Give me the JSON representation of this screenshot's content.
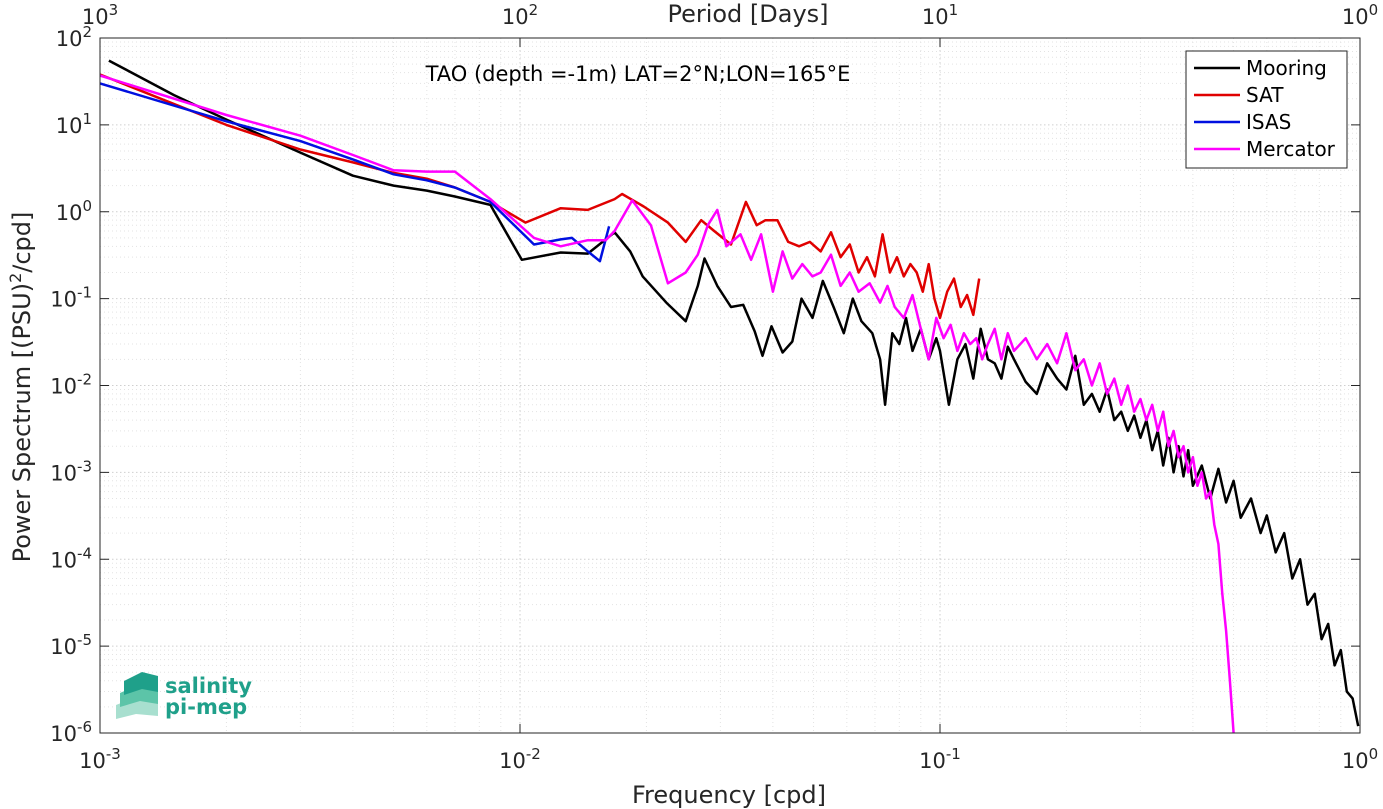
{
  "chart_data": {
    "type": "line",
    "annotation": "TAO (depth =-1m) LAT=2°N;LON=165°E",
    "xlabel": "Frequency [cpd]",
    "ylabel": "Power Spectrum [(PSU)²/cpd]",
    "ylabel_parts": {
      "pre": "Power Spectrum [(PSU)",
      "sup": "2",
      "post": "/cpd]"
    },
    "top_axis_label": "Period [Days]",
    "xscale": "log",
    "yscale": "log",
    "xlim": [
      0.001,
      1
    ],
    "ylim": [
      1e-06,
      100
    ],
    "grid": "major and minor, dotted",
    "legend_location": "top-right",
    "x_ticks": [
      {
        "value": 0.001,
        "base": "10",
        "exp": "-3"
      },
      {
        "value": 0.01,
        "base": "10",
        "exp": "-2"
      },
      {
        "value": 0.1,
        "base": "10",
        "exp": "-1"
      },
      {
        "value": 1,
        "base": "10",
        "exp": "0"
      }
    ],
    "y_ticks": [
      {
        "value": 100,
        "base": "10",
        "exp": "2"
      },
      {
        "value": 10,
        "base": "10",
        "exp": "1"
      },
      {
        "value": 1,
        "base": "10",
        "exp": "0"
      },
      {
        "value": 0.1,
        "base": "10",
        "exp": "-1"
      },
      {
        "value": 0.01,
        "base": "10",
        "exp": "-2"
      },
      {
        "value": 0.001,
        "base": "10",
        "exp": "-3"
      },
      {
        "value": 0.0001,
        "base": "10",
        "exp": "-4"
      },
      {
        "value": 1e-05,
        "base": "10",
        "exp": "-5"
      },
      {
        "value": 1e-06,
        "base": "10",
        "exp": "-6"
      }
    ],
    "top_ticks": [
      {
        "freq": 0.001,
        "base": "10",
        "exp": "3"
      },
      {
        "freq": 0.01,
        "base": "10",
        "exp": "2"
      },
      {
        "freq": 0.1,
        "base": "10",
        "exp": "1"
      },
      {
        "freq": 1,
        "base": "10",
        "exp": "0"
      }
    ],
    "series": [
      {
        "name": "Mooring",
        "color": "#000000",
        "points": [
          [
            0.00105,
            55
          ],
          [
            0.0015,
            22
          ],
          [
            0.002,
            11.5
          ],
          [
            0.003,
            4.8
          ],
          [
            0.004,
            2.6
          ],
          [
            0.005,
            2.0
          ],
          [
            0.006,
            1.75
          ],
          [
            0.007,
            1.5
          ],
          [
            0.0085,
            1.2
          ],
          [
            0.0101,
            0.28
          ],
          [
            0.0125,
            0.34
          ],
          [
            0.0145,
            0.33
          ],
          [
            0.0168,
            0.58
          ],
          [
            0.0183,
            0.35
          ],
          [
            0.0196,
            0.18
          ],
          [
            0.0223,
            0.09
          ],
          [
            0.0248,
            0.055
          ],
          [
            0.0265,
            0.14
          ],
          [
            0.0275,
            0.29
          ],
          [
            0.0295,
            0.14
          ],
          [
            0.0318,
            0.08
          ],
          [
            0.034,
            0.085
          ],
          [
            0.0362,
            0.042
          ],
          [
            0.0378,
            0.022
          ],
          [
            0.0397,
            0.048
          ],
          [
            0.0422,
            0.024
          ],
          [
            0.0445,
            0.032
          ],
          [
            0.0468,
            0.1
          ],
          [
            0.0497,
            0.06
          ],
          [
            0.0526,
            0.16
          ],
          [
            0.0558,
            0.08
          ],
          [
            0.059,
            0.04
          ],
          [
            0.062,
            0.1
          ],
          [
            0.065,
            0.055
          ],
          [
            0.069,
            0.04
          ],
          [
            0.072,
            0.02
          ],
          [
            0.074,
            0.006
          ],
          [
            0.077,
            0.04
          ],
          [
            0.08,
            0.03
          ],
          [
            0.083,
            0.06
          ],
          [
            0.086,
            0.025
          ],
          [
            0.09,
            0.045
          ],
          [
            0.094,
            0.02
          ],
          [
            0.098,
            0.035
          ],
          [
            0.1,
            0.025
          ],
          [
            0.105,
            0.006
          ],
          [
            0.11,
            0.02
          ],
          [
            0.115,
            0.03
          ],
          [
            0.12,
            0.012
          ],
          [
            0.125,
            0.045
          ],
          [
            0.13,
            0.02
          ],
          [
            0.135,
            0.018
          ],
          [
            0.14,
            0.012
          ],
          [
            0.145,
            0.028
          ],
          [
            0.15,
            0.02
          ],
          [
            0.16,
            0.011
          ],
          [
            0.17,
            0.008
          ],
          [
            0.18,
            0.018
          ],
          [
            0.19,
            0.012
          ],
          [
            0.2,
            0.009
          ],
          [
            0.21,
            0.022
          ],
          [
            0.22,
            0.006
          ],
          [
            0.23,
            0.008
          ],
          [
            0.24,
            0.005
          ],
          [
            0.25,
            0.009
          ],
          [
            0.26,
            0.004
          ],
          [
            0.27,
            0.005
          ],
          [
            0.28,
            0.003
          ],
          [
            0.29,
            0.0045
          ],
          [
            0.3,
            0.0025
          ],
          [
            0.31,
            0.004
          ],
          [
            0.32,
            0.0018
          ],
          [
            0.33,
            0.003
          ],
          [
            0.34,
            0.0012
          ],
          [
            0.35,
            0.0025
          ],
          [
            0.36,
            0.001
          ],
          [
            0.37,
            0.002
          ],
          [
            0.38,
            0.0009
          ],
          [
            0.39,
            0.0018
          ],
          [
            0.4,
            0.0007
          ],
          [
            0.42,
            0.0012
          ],
          [
            0.44,
            0.0005
          ],
          [
            0.46,
            0.0011
          ],
          [
            0.48,
            0.00045
          ],
          [
            0.5,
            0.0008
          ],
          [
            0.52,
            0.0003
          ],
          [
            0.55,
            0.0005
          ],
          [
            0.58,
            0.0002
          ],
          [
            0.6,
            0.00032
          ],
          [
            0.63,
            0.00012
          ],
          [
            0.66,
            0.0002
          ],
          [
            0.69,
            6e-05
          ],
          [
            0.72,
            0.0001
          ],
          [
            0.75,
            3e-05
          ],
          [
            0.78,
            4e-05
          ],
          [
            0.81,
            1.2e-05
          ],
          [
            0.84,
            1.8e-05
          ],
          [
            0.87,
            6e-06
          ],
          [
            0.9,
            9e-06
          ],
          [
            0.93,
            3e-06
          ],
          [
            0.96,
            2.5e-06
          ],
          [
            0.99,
            1.2e-06
          ]
        ]
      },
      {
        "name": "SAT",
        "color": "#e00000",
        "points": [
          [
            0.001,
            38
          ],
          [
            0.002,
            10
          ],
          [
            0.003,
            5.2
          ],
          [
            0.004,
            3.7
          ],
          [
            0.005,
            2.8
          ],
          [
            0.006,
            2.4
          ],
          [
            0.007,
            1.9
          ],
          [
            0.0085,
            1.3
          ],
          [
            0.0103,
            0.75
          ],
          [
            0.0125,
            1.1
          ],
          [
            0.0145,
            1.05
          ],
          [
            0.0168,
            1.4
          ],
          [
            0.0175,
            1.6
          ],
          [
            0.0197,
            1.15
          ],
          [
            0.0225,
            0.75
          ],
          [
            0.0248,
            0.45
          ],
          [
            0.027,
            0.8
          ],
          [
            0.029,
            0.6
          ],
          [
            0.0318,
            0.42
          ],
          [
            0.0345,
            1.3
          ],
          [
            0.0366,
            0.7
          ],
          [
            0.0384,
            0.8
          ],
          [
            0.041,
            0.8
          ],
          [
            0.0435,
            0.45
          ],
          [
            0.0462,
            0.4
          ],
          [
            0.049,
            0.45
          ],
          [
            0.052,
            0.35
          ],
          [
            0.055,
            0.58
          ],
          [
            0.058,
            0.3
          ],
          [
            0.061,
            0.42
          ],
          [
            0.064,
            0.2
          ],
          [
            0.067,
            0.3
          ],
          [
            0.07,
            0.18
          ],
          [
            0.073,
            0.55
          ],
          [
            0.076,
            0.2
          ],
          [
            0.079,
            0.3
          ],
          [
            0.082,
            0.18
          ],
          [
            0.085,
            0.25
          ],
          [
            0.088,
            0.2
          ],
          [
            0.091,
            0.12
          ],
          [
            0.094,
            0.25
          ],
          [
            0.097,
            0.1
          ],
          [
            0.1,
            0.06
          ],
          [
            0.104,
            0.12
          ],
          [
            0.108,
            0.17
          ],
          [
            0.112,
            0.08
          ],
          [
            0.116,
            0.11
          ],
          [
            0.12,
            0.065
          ],
          [
            0.124,
            0.17
          ]
        ]
      },
      {
        "name": "ISAS",
        "color": "#0010e0",
        "points": [
          [
            0.001,
            30
          ],
          [
            0.002,
            11
          ],
          [
            0.003,
            6.5
          ],
          [
            0.004,
            4
          ],
          [
            0.005,
            2.7
          ],
          [
            0.006,
            2.3
          ],
          [
            0.007,
            1.9
          ],
          [
            0.0085,
            1.3
          ],
          [
            0.0108,
            0.42
          ],
          [
            0.0125,
            0.48
          ],
          [
            0.0133,
            0.5
          ],
          [
            0.0145,
            0.35
          ],
          [
            0.0155,
            0.27
          ],
          [
            0.0163,
            0.68
          ]
        ]
      },
      {
        "name": "Mercator",
        "color": "#ff00ff",
        "points": [
          [
            0.001,
            37
          ],
          [
            0.002,
            13
          ],
          [
            0.003,
            7.5
          ],
          [
            0.004,
            4.5
          ],
          [
            0.005,
            3.0
          ],
          [
            0.006,
            2.9
          ],
          [
            0.007,
            2.9
          ],
          [
            0.0085,
            1.4
          ],
          [
            0.0108,
            0.5
          ],
          [
            0.0125,
            0.4
          ],
          [
            0.0145,
            0.47
          ],
          [
            0.016,
            0.47
          ],
          [
            0.0168,
            0.6
          ],
          [
            0.0185,
            1.35
          ],
          [
            0.0205,
            0.7
          ],
          [
            0.0225,
            0.15
          ],
          [
            0.0248,
            0.2
          ],
          [
            0.0265,
            0.32
          ],
          [
            0.028,
            0.7
          ],
          [
            0.0295,
            1.05
          ],
          [
            0.031,
            0.4
          ],
          [
            0.0335,
            0.55
          ],
          [
            0.0355,
            0.28
          ],
          [
            0.0375,
            0.55
          ],
          [
            0.04,
            0.12
          ],
          [
            0.0422,
            0.35
          ],
          [
            0.0445,
            0.17
          ],
          [
            0.047,
            0.25
          ],
          [
            0.0497,
            0.18
          ],
          [
            0.052,
            0.2
          ],
          [
            0.055,
            0.32
          ],
          [
            0.058,
            0.14
          ],
          [
            0.061,
            0.2
          ],
          [
            0.064,
            0.12
          ],
          [
            0.068,
            0.15
          ],
          [
            0.072,
            0.09
          ],
          [
            0.075,
            0.14
          ],
          [
            0.078,
            0.08
          ],
          [
            0.082,
            0.06
          ],
          [
            0.086,
            0.11
          ],
          [
            0.09,
            0.045
          ],
          [
            0.094,
            0.02
          ],
          [
            0.098,
            0.06
          ],
          [
            0.102,
            0.035
          ],
          [
            0.106,
            0.05
          ],
          [
            0.11,
            0.025
          ],
          [
            0.114,
            0.04
          ],
          [
            0.118,
            0.03
          ],
          [
            0.122,
            0.035
          ],
          [
            0.126,
            0.02
          ],
          [
            0.13,
            0.03
          ],
          [
            0.135,
            0.045
          ],
          [
            0.14,
            0.02
          ],
          [
            0.145,
            0.04
          ],
          [
            0.15,
            0.025
          ],
          [
            0.16,
            0.035
          ],
          [
            0.17,
            0.02
          ],
          [
            0.18,
            0.03
          ],
          [
            0.19,
            0.018
          ],
          [
            0.2,
            0.04
          ],
          [
            0.21,
            0.015
          ],
          [
            0.22,
            0.02
          ],
          [
            0.23,
            0.01
          ],
          [
            0.24,
            0.018
          ],
          [
            0.25,
            0.008
          ],
          [
            0.26,
            0.012
          ],
          [
            0.27,
            0.006
          ],
          [
            0.28,
            0.01
          ],
          [
            0.29,
            0.005
          ],
          [
            0.3,
            0.007
          ],
          [
            0.31,
            0.004
          ],
          [
            0.32,
            0.006
          ],
          [
            0.33,
            0.003
          ],
          [
            0.34,
            0.005
          ],
          [
            0.35,
            0.002
          ],
          [
            0.36,
            0.003
          ],
          [
            0.37,
            0.0015
          ],
          [
            0.38,
            0.002
          ],
          [
            0.39,
            0.001
          ],
          [
            0.4,
            0.0015
          ],
          [
            0.41,
            0.0007
          ],
          [
            0.42,
            0.001
          ],
          [
            0.43,
            0.0005
          ],
          [
            0.44,
            0.0006
          ],
          [
            0.45,
            0.00025
          ],
          [
            0.46,
            0.00015
          ],
          [
            0.47,
            4e-05
          ],
          [
            0.48,
            1.5e-05
          ],
          [
            0.49,
            4e-06
          ],
          [
            0.5,
            1e-06
          ]
        ]
      }
    ]
  },
  "logo": {
    "line1": "salinity",
    "line2": "pi-mep",
    "colors": [
      "#1fa08a",
      "#5cc4a8",
      "#a8dfcf"
    ]
  }
}
